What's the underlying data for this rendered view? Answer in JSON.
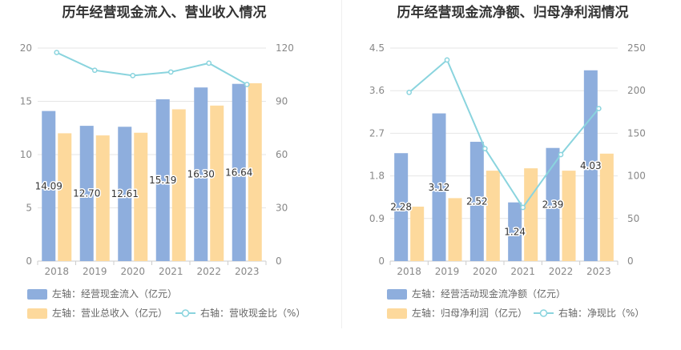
{
  "chart_data": [
    {
      "type": "bar",
      "title": "历年经营现金流入、营业收入情况",
      "categories": [
        "2018",
        "2019",
        "2020",
        "2021",
        "2022",
        "2023"
      ],
      "series": [
        {
          "name": "左轴：经营现金流入（亿元）",
          "axis": "left",
          "kind": "bar",
          "color": "#8eaedd",
          "values": [
            14.09,
            12.7,
            12.61,
            15.19,
            16.3,
            16.64
          ],
          "labels": [
            "14.09",
            "12.70",
            "12.61",
            "15.19",
            "16.30",
            "16.64"
          ]
        },
        {
          "name": "左轴：营业总收入（亿元）",
          "axis": "left",
          "kind": "bar",
          "color": "#fdd99c",
          "values": [
            12.0,
            11.8,
            12.05,
            14.25,
            14.6,
            16.7
          ]
        },
        {
          "name": "右轴：营收现金比（%）",
          "axis": "right",
          "kind": "line",
          "color": "#8ad4de",
          "values": [
            117.5,
            107.5,
            104.5,
            106.5,
            111.5,
            99.5
          ]
        }
      ],
      "left_axis": {
        "ylim": [
          0,
          20
        ],
        "ticks": [
          "0",
          "5",
          "10",
          "15",
          "20"
        ]
      },
      "right_axis": {
        "ylim": [
          0,
          120
        ],
        "ticks": [
          "0",
          "30",
          "60",
          "90",
          "120"
        ]
      },
      "grid": true,
      "legend": "bottom"
    },
    {
      "type": "bar",
      "title": "历年经营现金流净额、归母净利润情况",
      "categories": [
        "2018",
        "2019",
        "2020",
        "2021",
        "2022",
        "2023"
      ],
      "series": [
        {
          "name": "左轴：经营活动现金流净额（亿元）",
          "axis": "left",
          "kind": "bar",
          "color": "#8eaedd",
          "values": [
            2.28,
            3.12,
            2.52,
            1.24,
            2.39,
            4.03
          ],
          "labels": [
            "2.28",
            "3.12",
            "2.52",
            "1.24",
            "2.39",
            "4.03"
          ]
        },
        {
          "name": "左轴：归母净利润（亿元）",
          "axis": "left",
          "kind": "bar",
          "color": "#fdd99c",
          "values": [
            1.15,
            1.33,
            1.91,
            1.96,
            1.91,
            2.27
          ]
        },
        {
          "name": "右轴：净现比（%）",
          "axis": "right",
          "kind": "line",
          "color": "#8ad4de",
          "values": [
            198,
            236,
            132,
            63,
            125,
            179
          ]
        }
      ],
      "left_axis": {
        "ylim": [
          0,
          4.5
        ],
        "ticks": [
          "0",
          "0.9",
          "1.8",
          "2.7",
          "3.6",
          "4.5"
        ]
      },
      "right_axis": {
        "ylim": [
          0,
          250
        ],
        "ticks": [
          "0",
          "50",
          "100",
          "150",
          "200",
          "250"
        ]
      },
      "grid": true,
      "legend": "bottom"
    }
  ]
}
